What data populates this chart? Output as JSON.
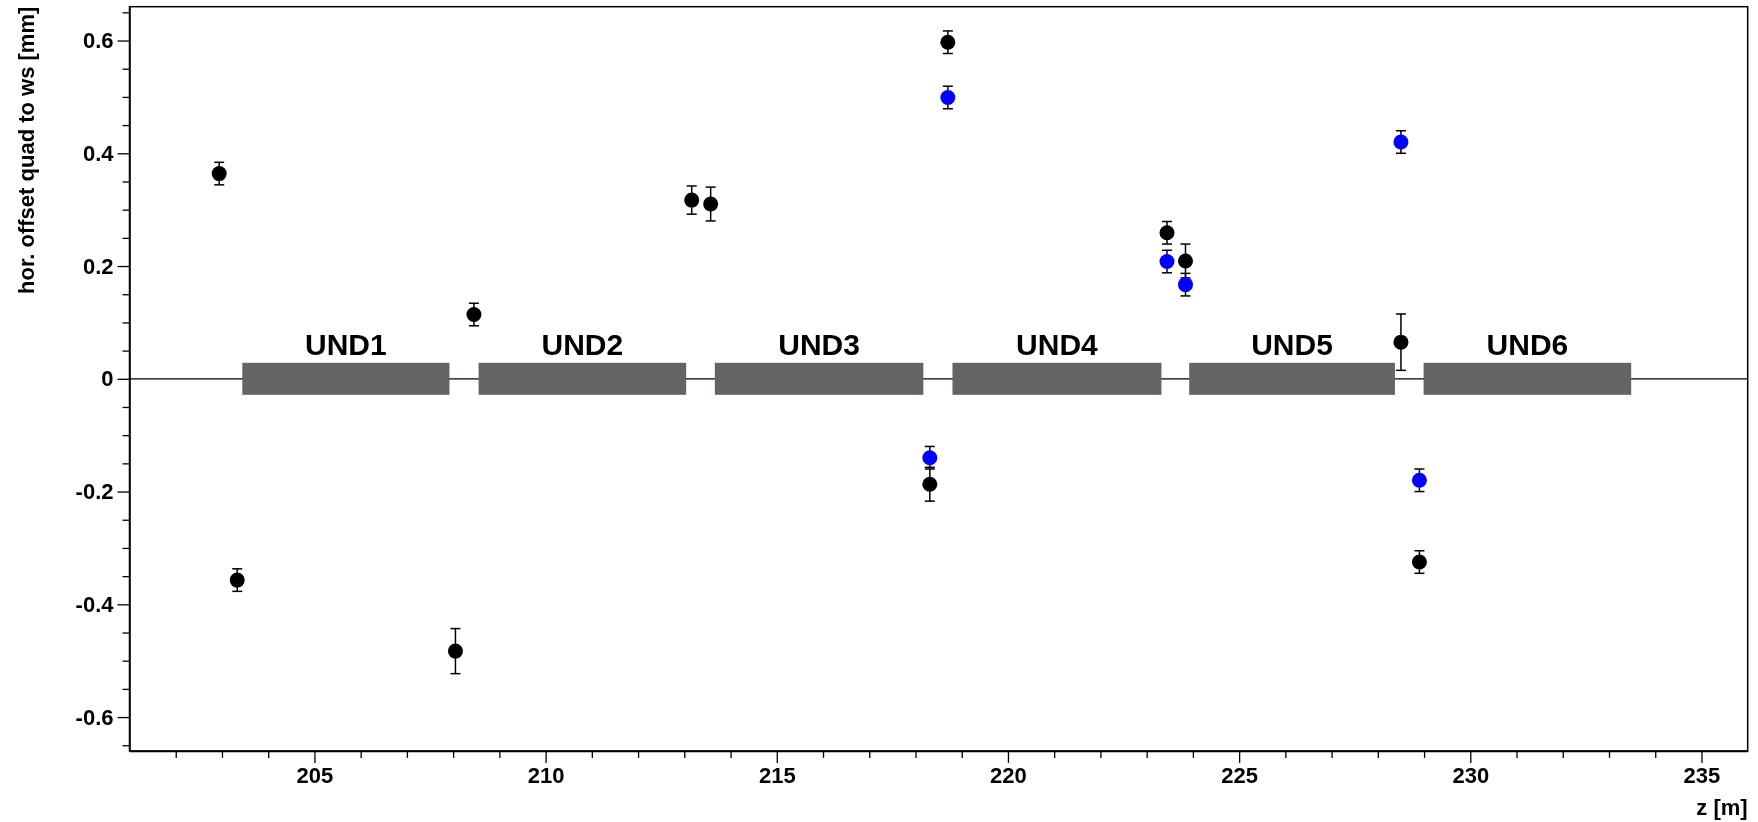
{
  "chart_data": {
    "type": "scatter",
    "xlabel": "z [m]",
    "ylabel": "hor. offset quad to ws [mm]",
    "marker": "circle",
    "grid": false,
    "xlim": [
      201,
      236
    ],
    "ylim": [
      -0.66,
      0.66
    ],
    "xticks": [
      {
        "value": 202,
        "label": null
      },
      {
        "value": 203,
        "label": null
      },
      {
        "value": 204,
        "label": null
      },
      205,
      {
        "value": 206,
        "label": null
      },
      {
        "value": 207,
        "label": null
      },
      {
        "value": 208,
        "label": null
      },
      {
        "value": 209,
        "label": null
      },
      210,
      {
        "value": 211,
        "label": null
      },
      {
        "value": 212,
        "label": null
      },
      {
        "value": 213,
        "label": null
      },
      {
        "value": 214,
        "label": null
      },
      215,
      {
        "value": 216,
        "label": null
      },
      {
        "value": 217,
        "label": null
      },
      {
        "value": 218,
        "label": null
      },
      {
        "value": 219,
        "label": null
      },
      220,
      {
        "value": 221,
        "label": null
      },
      {
        "value": 222,
        "label": null
      },
      {
        "value": 223,
        "label": null
      },
      {
        "value": 224,
        "label": null
      },
      225,
      {
        "value": 226,
        "label": null
      },
      {
        "value": 227,
        "label": null
      },
      {
        "value": 228,
        "label": null
      },
      {
        "value": 229,
        "label": null
      },
      230,
      {
        "value": 231,
        "label": null
      },
      {
        "value": 232,
        "label": null
      },
      {
        "value": 233,
        "label": null
      },
      {
        "value": 234,
        "label": null
      },
      235
    ],
    "yticks": [
      {
        "value": -0.65,
        "label": null
      },
      -0.6,
      {
        "value": -0.55,
        "label": null
      },
      {
        "value": -0.5,
        "label": null
      },
      {
        "value": -0.45,
        "label": null
      },
      -0.4,
      {
        "value": -0.35,
        "label": null
      },
      {
        "value": -0.3,
        "label": null
      },
      {
        "value": -0.25,
        "label": null
      },
      -0.2,
      {
        "value": -0.15,
        "label": null
      },
      {
        "value": -0.1,
        "label": null
      },
      {
        "value": -0.05,
        "label": null
      },
      0,
      {
        "value": 0.05,
        "label": null
      },
      {
        "value": 0.1,
        "label": null
      },
      {
        "value": 0.15,
        "label": null
      },
      0.2,
      {
        "value": 0.25,
        "label": null
      },
      {
        "value": 0.3,
        "label": null
      },
      {
        "value": 0.35,
        "label": null
      },
      0.4,
      {
        "value": 0.45,
        "label": null
      },
      {
        "value": 0.5,
        "label": null
      },
      {
        "value": 0.55,
        "label": null
      },
      0.6,
      {
        "value": 0.65,
        "label": null
      }
    ],
    "ref_lines": [
      {
        "axis": "y",
        "value": 0,
        "color": "#000000"
      }
    ],
    "bands": [
      {
        "axis": "x",
        "from": 203.44,
        "to": 207.92,
        "label": "UND1",
        "color": "#636562"
      },
      {
        "axis": "x",
        "from": 208.55,
        "to": 213.04,
        "label": "UND2",
        "color": "#636562"
      },
      {
        "axis": "x",
        "from": 213.66,
        "to": 218.17,
        "label": "UND3",
        "color": "#636562"
      },
      {
        "axis": "x",
        "from": 218.8,
        "to": 223.32,
        "label": "UND4",
        "color": "#636562"
      },
      {
        "axis": "x",
        "from": 223.92,
        "to": 228.37,
        "label": "UND5",
        "color": "#636562"
      },
      {
        "axis": "x",
        "from": 228.99,
        "to": 233.48,
        "label": "UND6",
        "color": "#636562"
      }
    ],
    "series": [
      {
        "color": "#000000",
        "x": [
          202.94,
          203.33,
          208.45,
          208.05,
          213.16,
          213.57,
          218.7,
          218.31,
          223.44,
          223.84,
          228.5,
          228.9
        ],
        "values": [
          0.364,
          -0.357,
          0.114,
          -0.483,
          0.317,
          0.31,
          0.597,
          -0.187,
          0.259,
          0.209,
          0.065,
          -0.325
        ],
        "errors": [
          0.02,
          0.02,
          0.02,
          0.04,
          0.025,
          0.03,
          0.02,
          0.03,
          0.02,
          0.03,
          0.05,
          0.02
        ]
      },
      {
        "color": "#0000ff",
        "x": [
          218.7,
          218.31,
          223.44,
          223.84,
          228.5,
          228.9
        ],
        "values": [
          0.499,
          -0.14,
          0.208,
          0.167,
          0.42,
          -0.18
        ],
        "errors": [
          0.02,
          0.02,
          0.02,
          0.02,
          0.02,
          0.02
        ]
      }
    ]
  }
}
